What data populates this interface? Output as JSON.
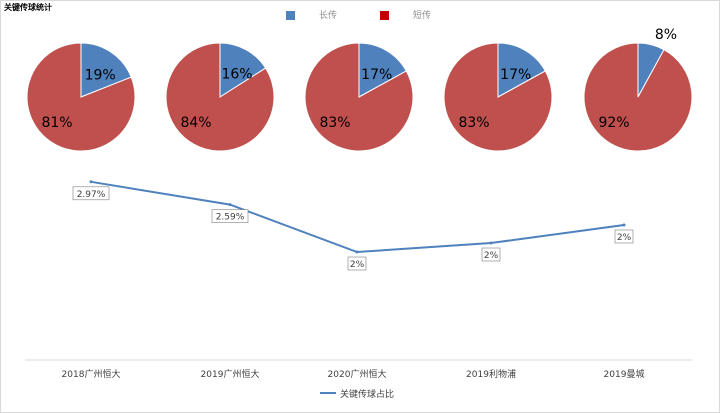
{
  "title": "关键传球统计",
  "colors": {
    "long_pass": "#4f81bd",
    "short_pass": "#c0504d",
    "short_pass_legend": "#c00000",
    "line": "#4f81bd",
    "axis": "#d9d9d9",
    "label_text": "#404040"
  },
  "pie_legend": {
    "long_label": "长传",
    "short_label": "短传"
  },
  "chart_data": [
    {
      "type": "pie",
      "categories": [
        "长传",
        "短传"
      ],
      "series": [
        {
          "name": "2018广州恒大",
          "values": [
            19,
            81
          ],
          "labels": [
            "19%",
            "81%"
          ]
        },
        {
          "name": "2019广州恒大",
          "values": [
            16,
            84
          ],
          "labels": [
            "16%",
            "84%"
          ]
        },
        {
          "name": "2020广州恒大",
          "values": [
            17,
            83
          ],
          "labels": [
            "17%",
            "83%"
          ]
        },
        {
          "name": "2019利物浦",
          "values": [
            17,
            83
          ],
          "labels": [
            "17%",
            "83%"
          ]
        },
        {
          "name": "2019曼城",
          "values": [
            8,
            92
          ],
          "labels": [
            "8%",
            "92%"
          ]
        }
      ],
      "legend": "top"
    },
    {
      "type": "line",
      "categories": [
        "2018广州恒大",
        "2019广州恒大",
        "2020广州恒大",
        "2019利物浦",
        "2019曼城"
      ],
      "series": [
        {
          "name": "关键传球占比",
          "values": [
            2.97,
            2.59,
            1.8,
            1.95,
            2.25
          ],
          "labels": [
            "2.97%",
            "2.59%",
            "2%",
            "2%",
            "2%"
          ]
        }
      ],
      "ylim": [
        0,
        4
      ],
      "grid": false,
      "legend": "bottom"
    }
  ]
}
